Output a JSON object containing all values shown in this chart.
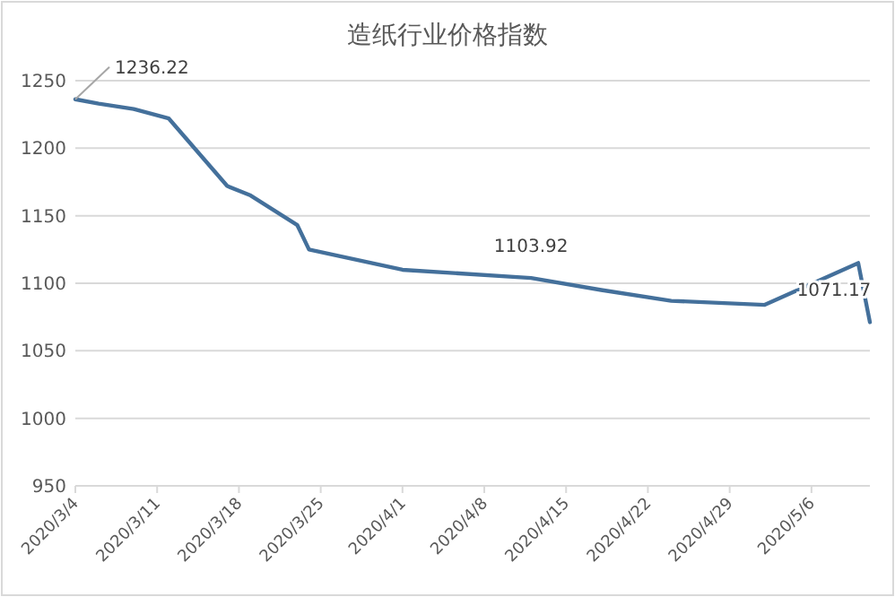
{
  "chart_data": {
    "type": "line",
    "title": "造纸行业价格指数",
    "x": [
      "2020-03-04",
      "2020-03-06",
      "2020-03-09",
      "2020-03-12",
      "2020-03-17",
      "2020-03-19",
      "2020-03-23",
      "2020-03-24",
      "2020-04-01",
      "2020-04-12",
      "2020-04-18",
      "2020-04-24",
      "2020-05-02",
      "2020-05-10",
      "2020-05-11"
    ],
    "series": [
      {
        "color": "#44709b",
        "values": [
          1236.22,
          1233,
          1229,
          1222,
          1172,
          1165,
          1143,
          1125,
          1110,
          1103.92,
          1095,
          1087,
          1084,
          1115,
          1071.17
        ]
      }
    ],
    "xlim": [
      "2020-03-04",
      "2020-05-11"
    ],
    "xticks": [
      {
        "value": "2020-03-04",
        "label": "2020/3/4"
      },
      {
        "value": "2020-03-11",
        "label": "2020/3/11"
      },
      {
        "value": "2020-03-18",
        "label": "2020/3/18"
      },
      {
        "value": "2020-03-25",
        "label": "2020/3/25"
      },
      {
        "value": "2020-04-01",
        "label": "2020/4/1"
      },
      {
        "value": "2020-04-08",
        "label": "2020/4/8"
      },
      {
        "value": "2020-04-15",
        "label": "2020/4/15"
      },
      {
        "value": "2020-04-22",
        "label": "2020/4/22"
      },
      {
        "value": "2020-04-29",
        "label": "2020/4/29"
      },
      {
        "value": "2020-05-06",
        "label": "2020/5/6"
      }
    ],
    "ylim": [
      950,
      1250
    ],
    "yticks": [
      950,
      1000,
      1050,
      1100,
      1150,
      1200,
      1250
    ],
    "grid": "y",
    "marker": "none",
    "line_style": "solid",
    "annotations": [
      {
        "text": "1236.22",
        "x": "2020-03-04",
        "y": 1236.22
      },
      {
        "text": "1103.92",
        "x": "2020-04-12",
        "y": 1103.92
      },
      {
        "text": "1071.17",
        "x": "2020-05-11",
        "y": 1071.17
      }
    ]
  }
}
